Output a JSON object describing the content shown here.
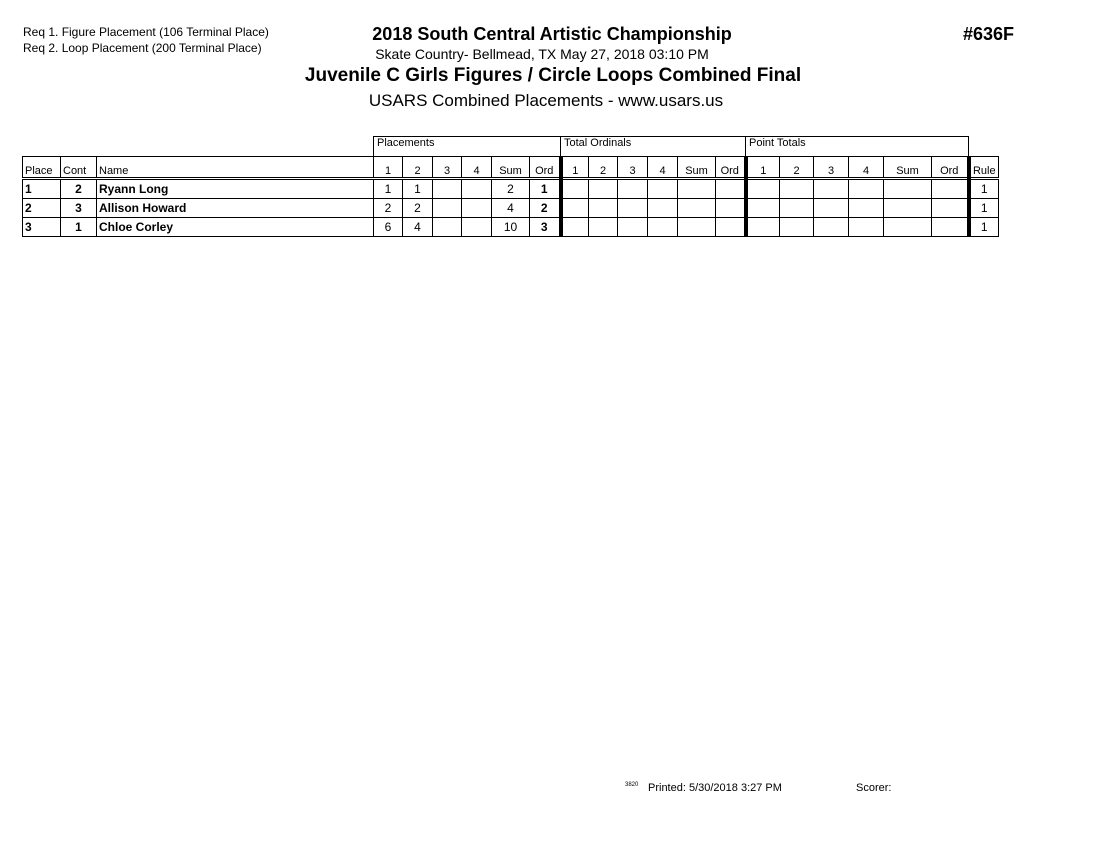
{
  "requirements": [
    "Req  1.  Figure Placement (106 Terminal Place)",
    "Req  2.  Loop Placement (200 Terminal Place)"
  ],
  "header": {
    "title": "2018 South Central Artistic Championship",
    "venue": "Skate Country- Bellmead, TX  May 27, 2018  03:10 PM",
    "event": "Juvenile C Girls Figures / Circle Loops Combined Final",
    "subtitle": "USARS Combined Placements - www.usars.us",
    "event_code": "#636F"
  },
  "table": {
    "groups": [
      "Placements",
      "Total Ordinals",
      "Point Totals"
    ],
    "columns": [
      "Place",
      "Cont",
      "Name",
      "1",
      "2",
      "3",
      "4",
      "Sum",
      "Ord",
      "1",
      "2",
      "3",
      "4",
      "Sum",
      "Ord",
      "1",
      "2",
      "3",
      "4",
      "Sum",
      "Ord",
      "Rule"
    ],
    "rows": [
      [
        "1",
        "2",
        "Ryann Long",
        "1",
        "1",
        "",
        "",
        "2",
        "1",
        "",
        "",
        "",
        "",
        "",
        "",
        "",
        "",
        "",
        "",
        "",
        "",
        "1"
      ],
      [
        "2",
        "3",
        "Allison Howard",
        "2",
        "2",
        "",
        "",
        "4",
        "2",
        "",
        "",
        "",
        "",
        "",
        "",
        "",
        "",
        "",
        "",
        "",
        "",
        "1"
      ],
      [
        "3",
        "1",
        "Chloe Corley",
        "6",
        "4",
        "",
        "",
        "10",
        "3",
        "",
        "",
        "",
        "",
        "",
        "",
        "",
        "",
        "",
        "",
        "",
        "",
        "1"
      ]
    ]
  },
  "footer": {
    "code": "3820",
    "printed": "Printed:  5/30/2018  3:27 PM",
    "scorer": "Scorer:"
  }
}
